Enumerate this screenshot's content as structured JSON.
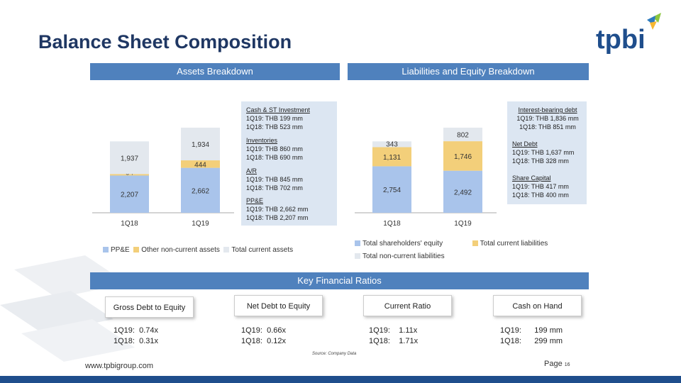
{
  "header": {
    "title": "Balance Sheet Composition",
    "logo_text": "tpbi"
  },
  "assets_header": "Assets Breakdown",
  "liab_header": "Liabilities and Equity Breakdown",
  "colors": {
    "ppe": "#a9c4eb",
    "other_nc": "#f3cf7a",
    "current": "#e3e8ee",
    "equity": "#a9c4eb",
    "current_liab": "#f3cf7a",
    "noncurrent_liab": "#e3e8ee",
    "header_blue": "#4f81bd",
    "title_blue": "#1f3763"
  },
  "chart_data": [
    {
      "type": "bar",
      "stacked": true,
      "categories": [
        "1Q18",
        "1Q19"
      ],
      "series": [
        {
          "name": "PP&E",
          "values": [
            2207,
            2662
          ]
        },
        {
          "name": "Other non-current assets",
          "values": [
            84,
            444
          ]
        },
        {
          "name": "Total current assets",
          "values": [
            1937,
            1934
          ]
        }
      ],
      "data_labels": [
        [
          "2,207",
          "84",
          "1,937"
        ],
        [
          "2,662",
          "444",
          "1,934"
        ]
      ]
    },
    {
      "type": "bar",
      "stacked": true,
      "categories": [
        "1Q18",
        "1Q19"
      ],
      "series": [
        {
          "name": "Total shareholders' equity",
          "values": [
            2754,
            2492
          ]
        },
        {
          "name": "Total current liabilities",
          "values": [
            1131,
            1746
          ]
        },
        {
          "name": "Total non-current liabilities",
          "values": [
            343,
            802
          ]
        }
      ],
      "data_labels": [
        [
          "2,754",
          "1,131",
          "343"
        ],
        [
          "2,492",
          "1,746",
          "802"
        ]
      ]
    }
  ],
  "asset_notes": [
    {
      "title": "Cash & ST Investment",
      "lines": [
        "1Q19: THB 199 mm",
        "1Q18: THB 523 mm"
      ]
    },
    {
      "title": "Inventories",
      "lines": [
        "1Q19: THB 860 mm",
        "1Q18: THB 690 mm"
      ]
    },
    {
      "title": "A/R",
      "lines": [
        "1Q19: THB 845 mm",
        "1Q18: THB 702 mm"
      ]
    },
    {
      "title": "PP&E",
      "lines": [
        "1Q19: THB 2,662 mm",
        "1Q18: THB 2,207 mm"
      ]
    }
  ],
  "liab_notes": [
    {
      "title": "Interest-bearing debt",
      "lines": [
        "1Q19: THB 1,836 mm",
        "1Q18: THB 851 mm"
      ]
    },
    {
      "title": "Net Debt",
      "lines": [
        "1Q19: THB 1,637 mm",
        "1Q18: THB 328 mm"
      ]
    },
    {
      "title": "Share Capital",
      "lines": [
        "1Q19: THB 417 mm",
        "1Q18: THB 400 mm"
      ]
    }
  ],
  "ratios_header": "Key Financial Ratios",
  "ratios": [
    {
      "label": "Gross Debt to Equity",
      "q19": "1Q19:  0.74x",
      "q18": "1Q18:  0.31x"
    },
    {
      "label": "Net Debt to Equity",
      "q19": "1Q19:  0.66x",
      "q18": "1Q18:  0.12x"
    },
    {
      "label": "Current Ratio",
      "q19": "1Q19:    1.11x",
      "q18": "1Q18:    1.71x"
    },
    {
      "label": "Cash on Hand",
      "q19": "1Q19:      199 mm",
      "q18": "1Q18:      299 mm"
    }
  ],
  "source": "Source: Company Data",
  "website": "www.tpbigroup.com",
  "page": {
    "label": "Page",
    "number": "16"
  }
}
